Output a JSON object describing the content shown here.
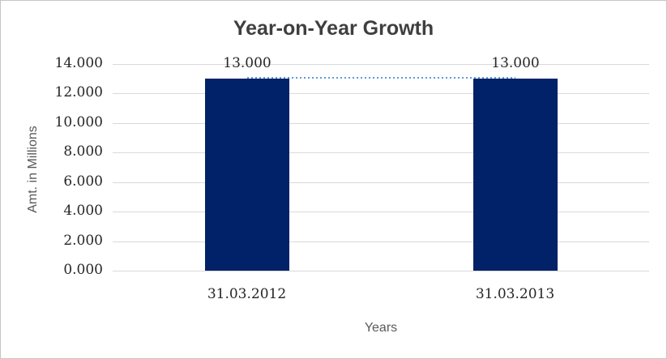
{
  "window": {
    "background_color": "#FFFFFF",
    "border_color": "#C6C6C6"
  },
  "chart_data": {
    "type": "bar",
    "title": "Year-on-Year Growth",
    "xlabel": "Years",
    "ylabel": "Amt. in Millions",
    "categories": [
      "31.03.2012",
      "31.03.2013"
    ],
    "values": [
      13.0,
      13.0
    ],
    "value_labels": [
      "13.000",
      "13.000"
    ],
    "ylim": [
      0,
      14
    ],
    "yticks": [
      {
        "value": 0,
        "label": "0.000"
      },
      {
        "value": 2,
        "label": "2.000"
      },
      {
        "value": 4,
        "label": "4.000"
      },
      {
        "value": 6,
        "label": "6.000"
      },
      {
        "value": 8,
        "label": "8.000"
      },
      {
        "value": 10,
        "label": "10.000"
      },
      {
        "value": 12,
        "label": "12.000"
      },
      {
        "value": 14,
        "label": "14.000"
      }
    ],
    "grid": true,
    "legend": "none",
    "bar_color": "#012169",
    "gridline_color": "#D9D9D9",
    "title_color": "#3F3F3F",
    "tick_label_color": "#262626",
    "axis_title_color": "#595959",
    "trendline": {
      "type": "line",
      "style": "dotted",
      "color": "#5B9BD5",
      "values": [
        13.0,
        13.0
      ]
    }
  }
}
